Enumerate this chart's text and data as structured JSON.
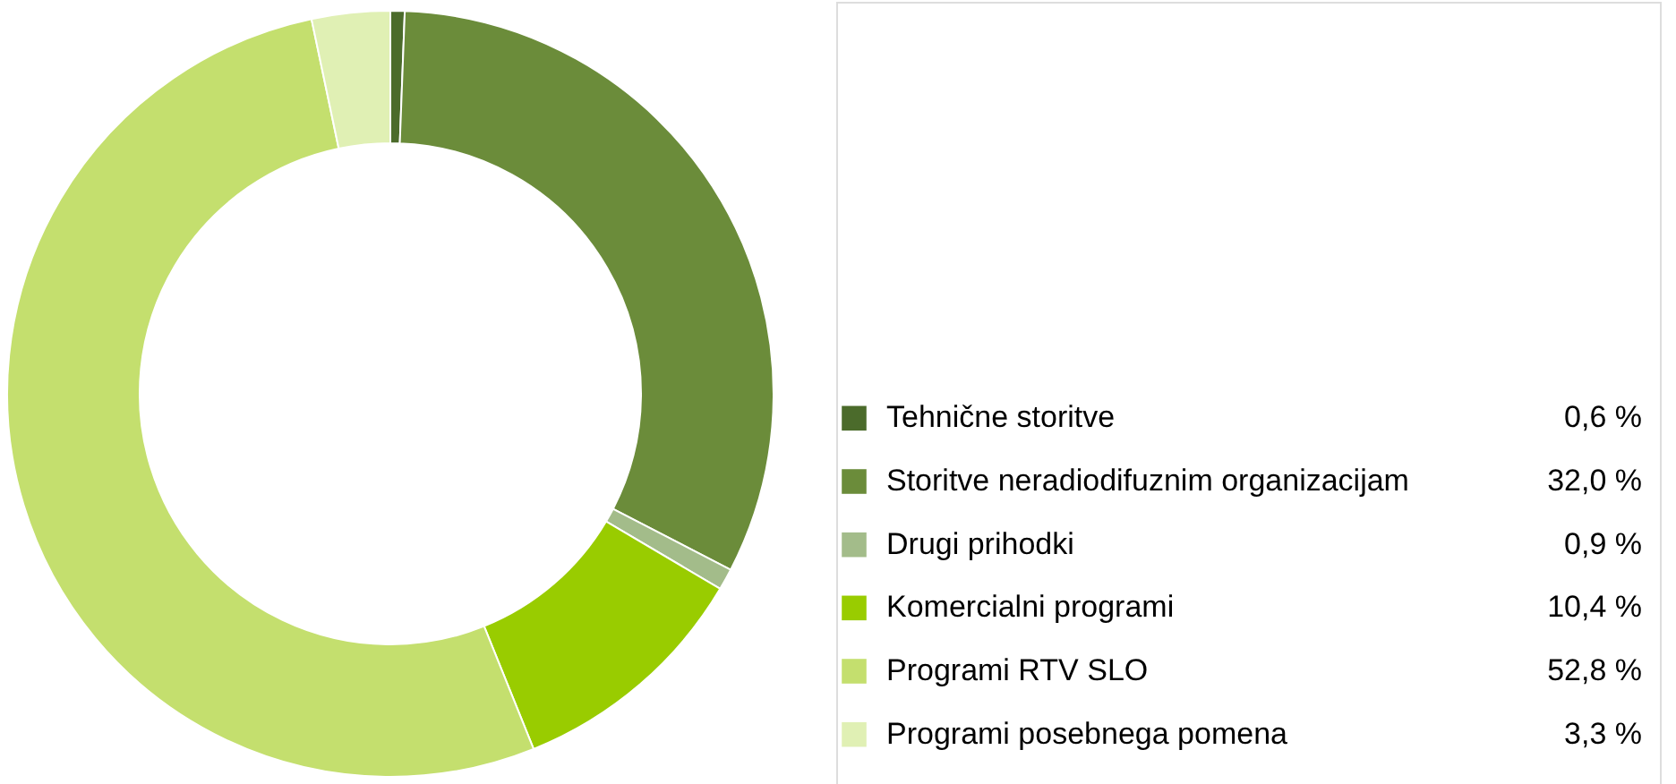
{
  "chart_data": {
    "type": "donut",
    "categories": [
      "Tehnične storitve",
      "Storitve neradiodifuznim organizacijam",
      "Drugi prihodki",
      "Komercialni programi",
      "Programi RTV SLO",
      "Programi posebnega pomena"
    ],
    "values": [
      0.6,
      32.0,
      0.9,
      10.4,
      52.8,
      3.3
    ],
    "colors": [
      "#4b6b2b",
      "#6b8c3a",
      "#a3bc8a",
      "#99cc00",
      "#c4df6e",
      "#e0f0b4"
    ],
    "value_labels": [
      "0,6 %",
      "32,0 %",
      "0,9 %",
      "10,4 %",
      "52,8 %",
      "3,3 %"
    ],
    "legend": "right"
  }
}
